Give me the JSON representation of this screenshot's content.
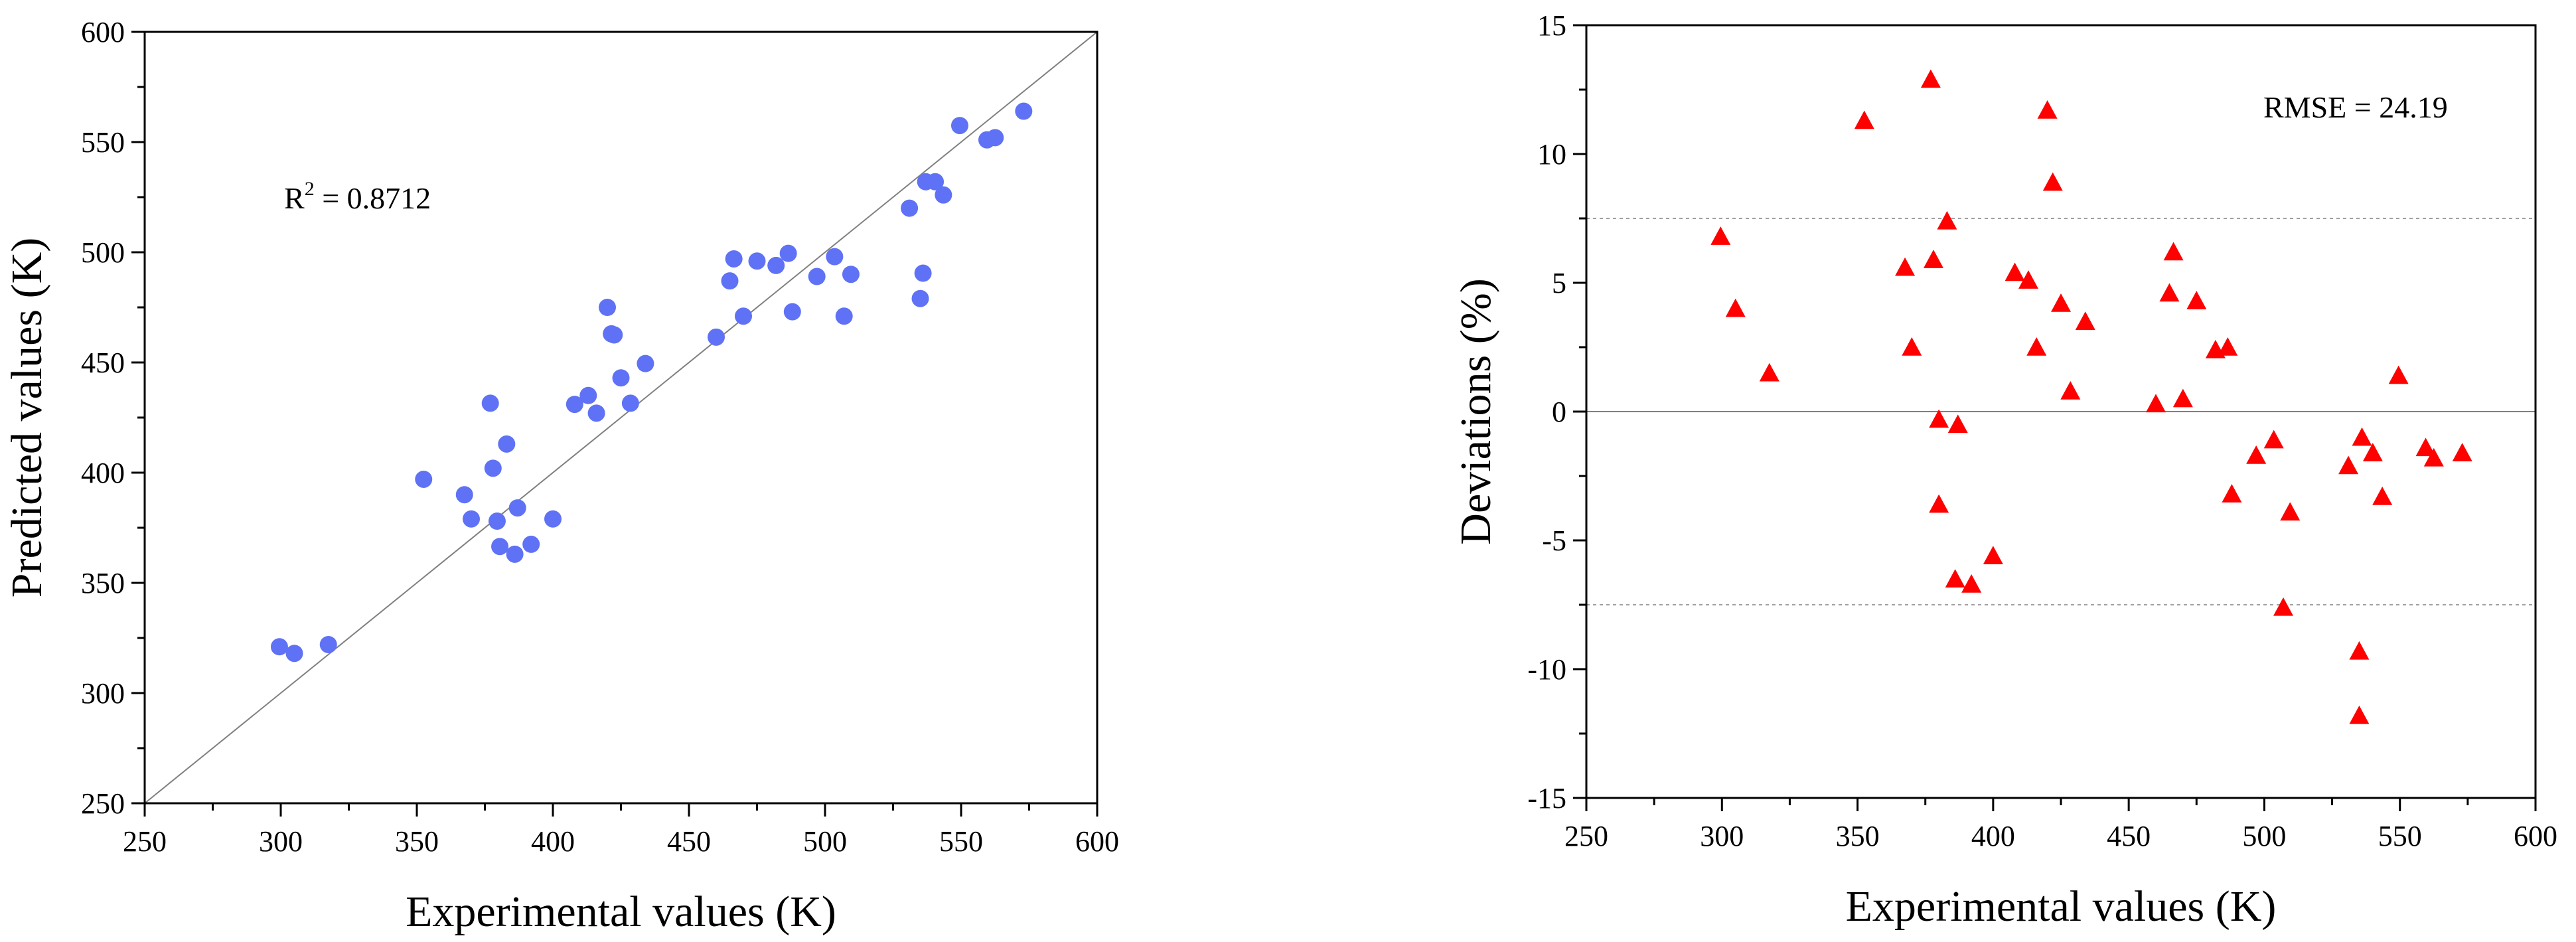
{
  "chart_data": [
    {
      "type": "scatter",
      "title": "",
      "xlabel": "Experimental values (K)",
      "ylabel": "Predicted values (K)",
      "xlim": [
        250,
        600
      ],
      "ylim": [
        250,
        600
      ],
      "xticks": [
        250,
        300,
        350,
        400,
        450,
        500,
        550,
        600
      ],
      "yticks": [
        250,
        300,
        350,
        400,
        450,
        500,
        550,
        600
      ],
      "marker": "circle",
      "marker_color": "#5f72f5",
      "annotation": {
        "prefix": "R",
        "sup": "2",
        "value": " = 0.8712"
      },
      "reference_line": "y = x",
      "points": [
        [
          299.5,
          321
        ],
        [
          305,
          318
        ],
        [
          317.5,
          322
        ],
        [
          352.5,
          397
        ],
        [
          367.5,
          390
        ],
        [
          370,
          379
        ],
        [
          377,
          431.5
        ],
        [
          378,
          402
        ],
        [
          379.5,
          378
        ],
        [
          380.5,
          366.5
        ],
        [
          383,
          413
        ],
        [
          386,
          363
        ],
        [
          387,
          384
        ],
        [
          392,
          367.5
        ],
        [
          400,
          379
        ],
        [
          408,
          431
        ],
        [
          413,
          435
        ],
        [
          416,
          427
        ],
        [
          420,
          475
        ],
        [
          421.5,
          463
        ],
        [
          422.5,
          462.5
        ],
        [
          425,
          443
        ],
        [
          428.5,
          431.5
        ],
        [
          434,
          449.5
        ],
        [
          460,
          461.5
        ],
        [
          465,
          487
        ],
        [
          466.5,
          497
        ],
        [
          470,
          471
        ],
        [
          475,
          496
        ],
        [
          482,
          494
        ],
        [
          486.5,
          499.5
        ],
        [
          488,
          473
        ],
        [
          497,
          489
        ],
        [
          503.5,
          498
        ],
        [
          507,
          471
        ],
        [
          509.5,
          490
        ],
        [
          531,
          520
        ],
        [
          535,
          479
        ],
        [
          536,
          490.5
        ],
        [
          537,
          532
        ],
        [
          540.5,
          532
        ],
        [
          543.5,
          526
        ],
        [
          549.5,
          557.5
        ],
        [
          559.5,
          551
        ],
        [
          562.5,
          552
        ],
        [
          573,
          564
        ]
      ]
    },
    {
      "type": "scatter",
      "title": "",
      "xlabel": "Experimental values (K)",
      "ylabel": "Deviations (%)",
      "xlim": [
        250,
        600
      ],
      "ylim": [
        -15,
        15
      ],
      "xticks": [
        250,
        300,
        350,
        400,
        450,
        500,
        550,
        600
      ],
      "yticks": [
        -15,
        -10,
        -5,
        0,
        5,
        10,
        15
      ],
      "marker": "triangle",
      "marker_color": "#ff0000",
      "annotation": "RMSE = 24.19",
      "reference_lines": [
        0,
        7.5,
        -7.5
      ],
      "points": [
        [
          299.5,
          6.8
        ],
        [
          305,
          4.0
        ],
        [
          317.5,
          1.5
        ],
        [
          352.5,
          11.3
        ],
        [
          367.5,
          5.6
        ],
        [
          370,
          2.5
        ],
        [
          377,
          12.9
        ],
        [
          378,
          5.9
        ],
        [
          380,
          -0.3
        ],
        [
          380,
          -3.6
        ],
        [
          383,
          7.4
        ],
        [
          386,
          -6.5
        ],
        [
          387,
          -0.5
        ],
        [
          392,
          -6.7
        ],
        [
          400,
          -5.6
        ],
        [
          408,
          5.4
        ],
        [
          413,
          5.1
        ],
        [
          416,
          2.5
        ],
        [
          420,
          11.7
        ],
        [
          422,
          8.9
        ],
        [
          425,
          4.2
        ],
        [
          428.5,
          0.8
        ],
        [
          434,
          3.5
        ],
        [
          460,
          0.3
        ],
        [
          465,
          4.6
        ],
        [
          466.5,
          6.2
        ],
        [
          470,
          0.5
        ],
        [
          475,
          4.3
        ],
        [
          482,
          2.4
        ],
        [
          486.5,
          2.5
        ],
        [
          488,
          -3.2
        ],
        [
          497,
          -1.7
        ],
        [
          503.5,
          -1.1
        ],
        [
          507,
          -7.6
        ],
        [
          509.5,
          -3.9
        ],
        [
          531,
          -2.1
        ],
        [
          535,
          -9.3
        ],
        [
          535,
          -11.8
        ],
        [
          536,
          -1.0
        ],
        [
          540,
          -1.6
        ],
        [
          543.5,
          -3.3
        ],
        [
          549.5,
          1.4
        ],
        [
          559.5,
          -1.4
        ],
        [
          562.5,
          -1.8
        ],
        [
          573,
          -1.6
        ]
      ]
    }
  ]
}
